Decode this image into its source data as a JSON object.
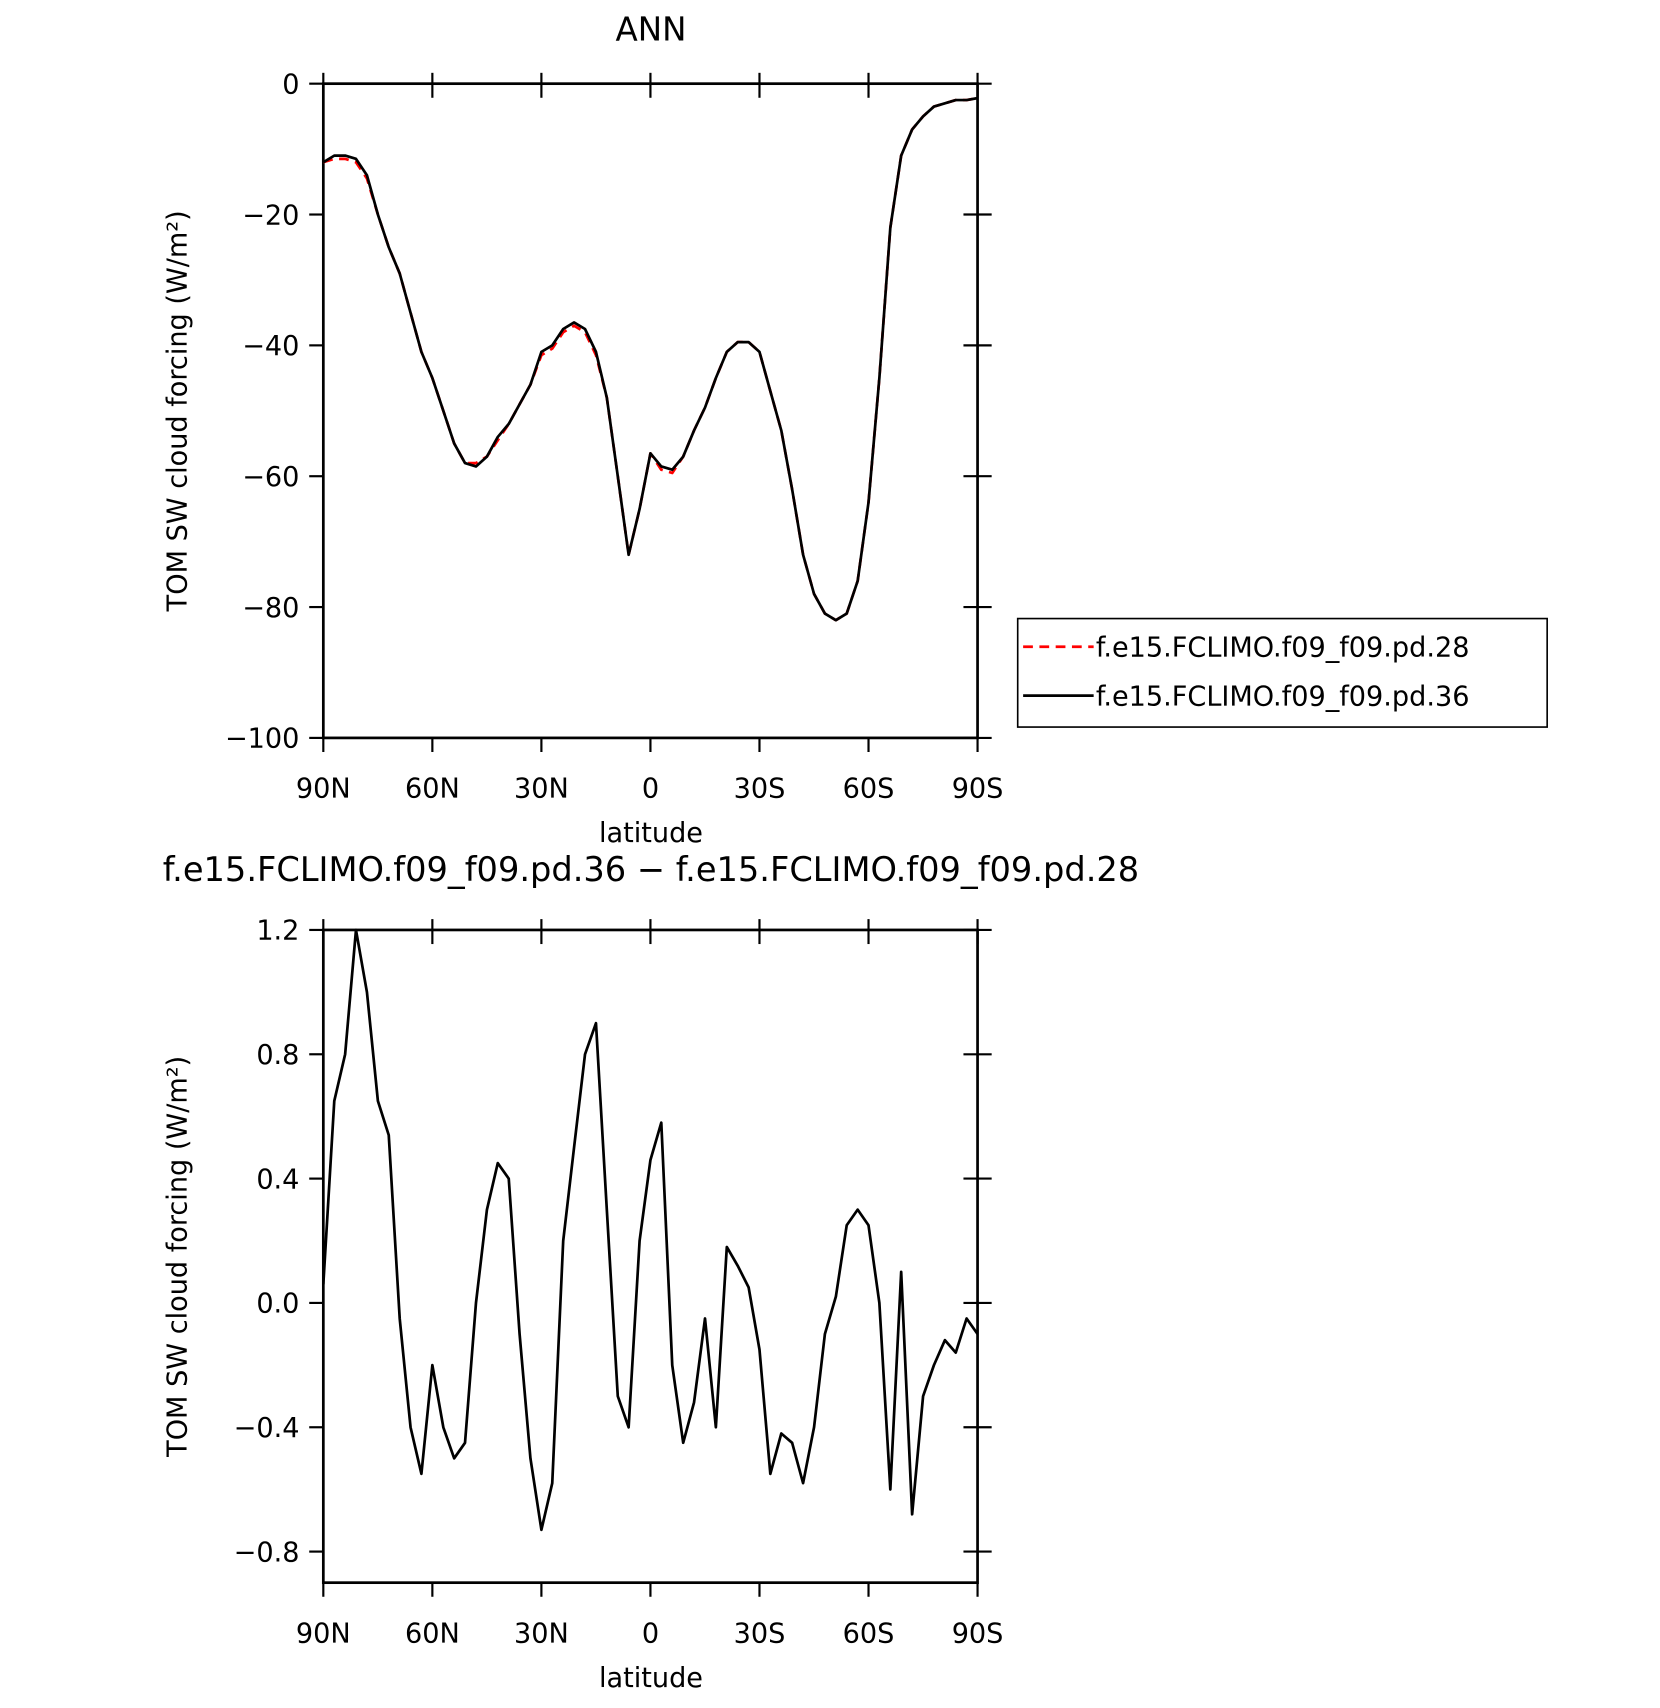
{
  "chart_data": [
    {
      "type": "line",
      "title": "ANN",
      "xlabel": "latitude",
      "ylabel": "TOM SW cloud forcing (W/m²)",
      "x": [
        90,
        87,
        84,
        81,
        78,
        75,
        72,
        69,
        66,
        63,
        60,
        57,
        54,
        51,
        48,
        45,
        42,
        39,
        36,
        33,
        30,
        27,
        24,
        21,
        18,
        15,
        12,
        9,
        6,
        3,
        0,
        -3,
        -6,
        -9,
        -12,
        -15,
        -18,
        -21,
        -24,
        -27,
        -30,
        -33,
        -36,
        -39,
        -42,
        -45,
        -48,
        -51,
        -54,
        -57,
        -60,
        -63,
        -66,
        -69,
        -72,
        -75,
        -78,
        -81,
        -84,
        -87,
        -90
      ],
      "series": [
        {
          "name": "f.e15.FCLIMO.f09_f09.pd.28",
          "color": "#ff0000",
          "dash": true,
          "values": [
            -12,
            -11.5,
            -11.5,
            -12,
            -14.5,
            -20,
            -25,
            -29,
            -35,
            -41,
            -45,
            -50,
            -55,
            -58,
            -58,
            -57,
            -54.5,
            -52,
            -49,
            -46,
            -41.5,
            -40.5,
            -38,
            -37,
            -38,
            -41.5,
            -48,
            -60,
            -72,
            -65,
            -56.5,
            -59,
            -59.5,
            -57,
            -53,
            -49.5,
            -45,
            -41,
            -39.5,
            -39.5,
            -41,
            -47,
            -53,
            -62,
            -72,
            -78,
            -81,
            -82,
            -81,
            -76,
            -64,
            -45,
            -22,
            -11,
            -7,
            -5,
            -3.5,
            -3,
            -2.5,
            -2.5,
            -2.2
          ]
        },
        {
          "name": "f.e15.FCLIMO.f09_f09.pd.36",
          "color": "#000000",
          "dash": false,
          "values": [
            -12,
            -11,
            -11,
            -11.5,
            -14,
            -20,
            -25,
            -29,
            -35,
            -41,
            -45,
            -50,
            -55,
            -58,
            -58.5,
            -57,
            -54,
            -52,
            -49,
            -46,
            -41,
            -40,
            -37.5,
            -36.5,
            -37.5,
            -41,
            -48,
            -60,
            -72,
            -65,
            -56.5,
            -58.5,
            -59,
            -57,
            -53,
            -49.5,
            -45,
            -41,
            -39.5,
            -39.5,
            -41,
            -47,
            -53,
            -62,
            -72,
            -78,
            -81,
            -82,
            -81,
            -76,
            -64,
            -45,
            -22,
            -11,
            -7,
            -5,
            -3.5,
            -3,
            -2.5,
            -2.5,
            -2.2
          ]
        }
      ],
      "xlim": [
        90,
        -90
      ],
      "xticks": [
        {
          "value": 90,
          "label": "90N"
        },
        {
          "value": 60,
          "label": "60N"
        },
        {
          "value": 30,
          "label": "30N"
        },
        0,
        {
          "value": -30,
          "label": "30S"
        },
        {
          "value": -60,
          "label": "60S"
        },
        {
          "value": -90,
          "label": "90S"
        }
      ],
      "ylim": [
        -100,
        0
      ],
      "yticks": [
        {
          "value": -100,
          "label": "−100"
        },
        {
          "value": -80,
          "label": "−80"
        },
        {
          "value": -60,
          "label": "−60"
        },
        {
          "value": -40,
          "label": "−40"
        },
        {
          "value": -20,
          "label": "−20"
        },
        0
      ],
      "legend": "right"
    },
    {
      "type": "line",
      "title": "f.e15.FCLIMO.f09_f09.pd.36 − f.e15.FCLIMO.f09_f09.pd.28",
      "xlabel": "latitude",
      "ylabel": "TOM SW cloud forcing (W/m²)",
      "x": [
        90,
        87,
        84,
        81,
        78,
        75,
        72,
        69,
        66,
        63,
        60,
        57,
        54,
        51,
        48,
        45,
        42,
        39,
        36,
        33,
        30,
        27,
        24,
        21,
        18,
        15,
        12,
        9,
        6,
        3,
        0,
        -3,
        -6,
        -9,
        -12,
        -15,
        -18,
        -21,
        -24,
        -27,
        -30,
        -33,
        -36,
        -39,
        -42,
        -45,
        -48,
        -51,
        -54,
        -57,
        -60,
        -63,
        -66,
        -69,
        -72,
        -75,
        -78,
        -81,
        -84,
        -87,
        -90
      ],
      "series": [
        {
          "color": "#000000",
          "dash": false,
          "values": [
            0.06,
            0.65,
            0.8,
            1.2,
            1.0,
            0.65,
            0.54,
            -0.05,
            -0.4,
            -0.55,
            -0.2,
            -0.4,
            -0.5,
            -0.45,
            0.0,
            0.3,
            0.45,
            0.4,
            -0.1,
            -0.5,
            -0.73,
            -0.58,
            0.2,
            0.5,
            0.8,
            0.9,
            0.3,
            -0.3,
            -0.4,
            0.2,
            0.46,
            0.58,
            -0.2,
            -0.45,
            -0.32,
            -0.05,
            -0.4,
            0.18,
            0.12,
            0.05,
            -0.15,
            -0.55,
            -0.42,
            -0.45,
            -0.58,
            -0.4,
            -0.1,
            0.02,
            0.25,
            0.3,
            0.25,
            0.0,
            -0.6,
            0.1,
            -0.68,
            -0.3,
            -0.2,
            -0.12,
            -0.16,
            -0.05,
            -0.1
          ]
        }
      ],
      "xlim": [
        90,
        -90
      ],
      "xticks": [
        {
          "value": 90,
          "label": "90N"
        },
        {
          "value": 60,
          "label": "60N"
        },
        {
          "value": 30,
          "label": "30N"
        },
        0,
        {
          "value": -30,
          "label": "30S"
        },
        {
          "value": -60,
          "label": "60S"
        },
        {
          "value": -90,
          "label": "90S"
        }
      ],
      "ylim": [
        -0.9,
        1.2
      ],
      "yticks": [
        {
          "value": -0.8,
          "label": "−0.8"
        },
        {
          "value": -0.4,
          "label": "−0.4"
        },
        {
          "value": 0,
          "label": "0.0"
        },
        0.4,
        0.8,
        1.2
      ]
    }
  ]
}
